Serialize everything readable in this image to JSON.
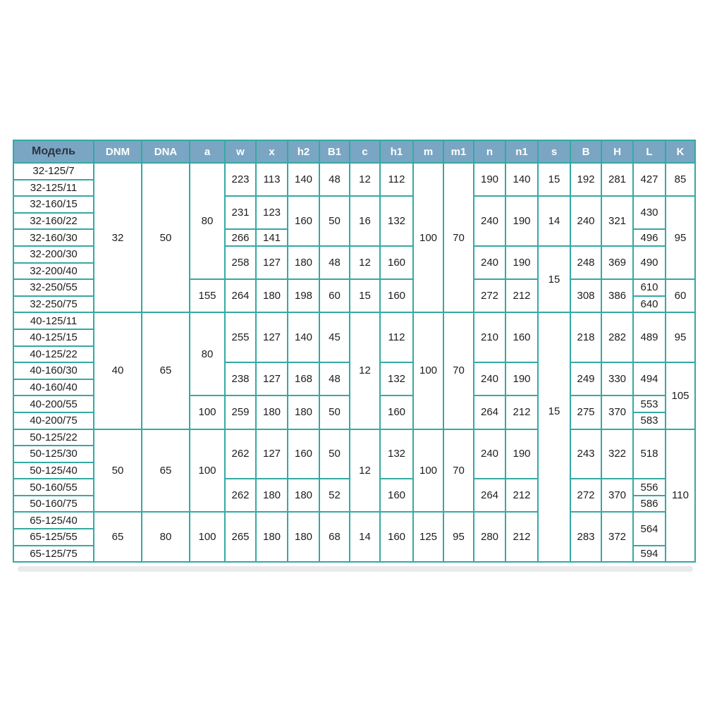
{
  "colors": {
    "border": "#35a9a4",
    "header_bg": "#7aa6c3",
    "header_text": "#ffffff",
    "model_header_text": "#2a3440",
    "cell_text": "#1d1d1f"
  },
  "table": {
    "columns": [
      {
        "key": "model",
        "label": "Модель"
      },
      {
        "key": "dnm",
        "label": "DNM"
      },
      {
        "key": "dna",
        "label": "DNA"
      },
      {
        "key": "a",
        "label": "a"
      },
      {
        "key": "w",
        "label": "w"
      },
      {
        "key": "x",
        "label": "x"
      },
      {
        "key": "h2",
        "label": "h2"
      },
      {
        "key": "b1",
        "label": "B1"
      },
      {
        "key": "c",
        "label": "c"
      },
      {
        "key": "h1",
        "label": "h1"
      },
      {
        "key": "m",
        "label": "m"
      },
      {
        "key": "m1",
        "label": "m1"
      },
      {
        "key": "n",
        "label": "n"
      },
      {
        "key": "n1",
        "label": "n1"
      },
      {
        "key": "s",
        "label": "s"
      },
      {
        "key": "b",
        "label": "B"
      },
      {
        "key": "h",
        "label": "H"
      },
      {
        "key": "l",
        "label": "L"
      },
      {
        "key": "k",
        "label": "K"
      }
    ],
    "rows": [
      {
        "cells": [
          {
            "c": "model",
            "v": "32-125/7"
          },
          {
            "c": "dnm",
            "v": "32",
            "rs": 9
          },
          {
            "c": "dna",
            "v": "50",
            "rs": 9
          },
          {
            "c": "a",
            "v": "80",
            "rs": 7
          },
          {
            "c": "w",
            "v": "223",
            "rs": 2
          },
          {
            "c": "x",
            "v": "113",
            "rs": 2
          },
          {
            "c": "h2",
            "v": "140",
            "rs": 2
          },
          {
            "c": "b1",
            "v": "48",
            "rs": 2
          },
          {
            "c": "c",
            "v": "12",
            "rs": 2
          },
          {
            "c": "h1",
            "v": "112",
            "rs": 2
          },
          {
            "c": "m",
            "v": "100",
            "rs": 9
          },
          {
            "c": "m1",
            "v": "70",
            "rs": 9
          },
          {
            "c": "n",
            "v": "190",
            "rs": 2
          },
          {
            "c": "n1",
            "v": "140",
            "rs": 2
          },
          {
            "c": "s",
            "v": "15",
            "rs": 2
          },
          {
            "c": "b",
            "v": "192",
            "rs": 2
          },
          {
            "c": "h",
            "v": "281",
            "rs": 2
          },
          {
            "c": "l",
            "v": "427",
            "rs": 2
          },
          {
            "c": "k",
            "v": "85",
            "rs": 2
          }
        ]
      },
      {
        "cells": [
          {
            "c": "model",
            "v": "32-125/11"
          }
        ]
      },
      {
        "cells": [
          {
            "c": "model",
            "v": "32-160/15"
          },
          {
            "c": "w",
            "v": "231",
            "rs": 2
          },
          {
            "c": "x",
            "v": "123",
            "rs": 2
          },
          {
            "c": "h2",
            "v": "160",
            "rs": 3
          },
          {
            "c": "b1",
            "v": "50",
            "rs": 3
          },
          {
            "c": "c",
            "v": "16",
            "rs": 3
          },
          {
            "c": "h1",
            "v": "132",
            "rs": 3
          },
          {
            "c": "n",
            "v": "240",
            "rs": 3
          },
          {
            "c": "n1",
            "v": "190",
            "rs": 3
          },
          {
            "c": "s",
            "v": "14",
            "rs": 3
          },
          {
            "c": "b",
            "v": "240",
            "rs": 3
          },
          {
            "c": "h",
            "v": "321",
            "rs": 3
          },
          {
            "c": "l",
            "v": "430",
            "rs": 2
          },
          {
            "c": "k",
            "v": "95",
            "rs": 5
          }
        ]
      },
      {
        "cells": [
          {
            "c": "model",
            "v": "32-160/22"
          }
        ]
      },
      {
        "cells": [
          {
            "c": "model",
            "v": "32-160/30"
          },
          {
            "c": "w",
            "v": "266"
          },
          {
            "c": "x",
            "v": "141"
          },
          {
            "c": "l",
            "v": "496"
          }
        ]
      },
      {
        "cells": [
          {
            "c": "model",
            "v": "32-200/30"
          },
          {
            "c": "w",
            "v": "258",
            "rs": 2
          },
          {
            "c": "x",
            "v": "127",
            "rs": 2
          },
          {
            "c": "h2",
            "v": "180",
            "rs": 2
          },
          {
            "c": "b1",
            "v": "48",
            "rs": 2
          },
          {
            "c": "c",
            "v": "12",
            "rs": 2
          },
          {
            "c": "h1",
            "v": "160",
            "rs": 2
          },
          {
            "c": "n",
            "v": "240",
            "rs": 2
          },
          {
            "c": "n1",
            "v": "190",
            "rs": 2
          },
          {
            "c": "s",
            "v": "15",
            "rs": 4
          },
          {
            "c": "b",
            "v": "248",
            "rs": 2
          },
          {
            "c": "h",
            "v": "369",
            "rs": 2
          },
          {
            "c": "l",
            "v": "490",
            "rs": 2
          }
        ]
      },
      {
        "cells": [
          {
            "c": "model",
            "v": "32-200/40"
          }
        ]
      },
      {
        "cells": [
          {
            "c": "model",
            "v": "32-250/55"
          },
          {
            "c": "a",
            "v": "155",
            "rs": 2
          },
          {
            "c": "w",
            "v": "264",
            "rs": 2
          },
          {
            "c": "x",
            "v": "180",
            "rs": 2
          },
          {
            "c": "h2",
            "v": "198",
            "rs": 2
          },
          {
            "c": "b1",
            "v": "60",
            "rs": 2
          },
          {
            "c": "c",
            "v": "15",
            "rs": 2
          },
          {
            "c": "h1",
            "v": "160",
            "rs": 2
          },
          {
            "c": "n",
            "v": "272",
            "rs": 2
          },
          {
            "c": "n1",
            "v": "212",
            "rs": 2
          },
          {
            "c": "b",
            "v": "308",
            "rs": 2
          },
          {
            "c": "h",
            "v": "386",
            "rs": 2
          },
          {
            "c": "l",
            "v": "610"
          },
          {
            "c": "k",
            "v": "60",
            "rs": 2
          }
        ]
      },
      {
        "cells": [
          {
            "c": "model",
            "v": "32-250/75"
          },
          {
            "c": "l",
            "v": "640"
          }
        ]
      },
      {
        "cells": [
          {
            "c": "model",
            "v": "40-125/11"
          },
          {
            "c": "dnm",
            "v": "40",
            "rs": 7
          },
          {
            "c": "dna",
            "v": "65",
            "rs": 7
          },
          {
            "c": "a",
            "v": "80",
            "rs": 5
          },
          {
            "c": "w",
            "v": "255",
            "rs": 3
          },
          {
            "c": "x",
            "v": "127",
            "rs": 3
          },
          {
            "c": "h2",
            "v": "140",
            "rs": 3
          },
          {
            "c": "b1",
            "v": "45",
            "rs": 3
          },
          {
            "c": "c",
            "v": "12",
            "rs": 7
          },
          {
            "c": "h1",
            "v": "112",
            "rs": 3
          },
          {
            "c": "m",
            "v": "100",
            "rs": 7
          },
          {
            "c": "m1",
            "v": "70",
            "rs": 7
          },
          {
            "c": "n",
            "v": "210",
            "rs": 3
          },
          {
            "c": "n1",
            "v": "160",
            "rs": 3
          },
          {
            "c": "s",
            "v": "15",
            "rs": 15,
            "va": "upper"
          },
          {
            "c": "b",
            "v": "218",
            "rs": 3
          },
          {
            "c": "h",
            "v": "282",
            "rs": 3
          },
          {
            "c": "l",
            "v": "489",
            "rs": 3
          },
          {
            "c": "k",
            "v": "95",
            "rs": 3
          }
        ]
      },
      {
        "cells": [
          {
            "c": "model",
            "v": "40-125/15"
          }
        ]
      },
      {
        "cells": [
          {
            "c": "model",
            "v": "40-125/22"
          }
        ]
      },
      {
        "cells": [
          {
            "c": "model",
            "v": "40-160/30"
          },
          {
            "c": "w",
            "v": "238",
            "rs": 2
          },
          {
            "c": "x",
            "v": "127",
            "rs": 2
          },
          {
            "c": "h2",
            "v": "168",
            "rs": 2
          },
          {
            "c": "b1",
            "v": "48",
            "rs": 2
          },
          {
            "c": "h1",
            "v": "132",
            "rs": 2
          },
          {
            "c": "n",
            "v": "240",
            "rs": 2
          },
          {
            "c": "n1",
            "v": "190",
            "rs": 2
          },
          {
            "c": "b",
            "v": "249",
            "rs": 2
          },
          {
            "c": "h",
            "v": "330",
            "rs": 2
          },
          {
            "c": "l",
            "v": "494",
            "rs": 2
          },
          {
            "c": "k",
            "v": "105",
            "rs": 4
          }
        ]
      },
      {
        "cells": [
          {
            "c": "model",
            "v": "40-160/40"
          }
        ]
      },
      {
        "cells": [
          {
            "c": "model",
            "v": "40-200/55"
          },
          {
            "c": "a",
            "v": "100",
            "rs": 2
          },
          {
            "c": "w",
            "v": "259",
            "rs": 2
          },
          {
            "c": "x",
            "v": "180",
            "rs": 2
          },
          {
            "c": "h2",
            "v": "180",
            "rs": 2
          },
          {
            "c": "b1",
            "v": "50",
            "rs": 2
          },
          {
            "c": "h1",
            "v": "160",
            "rs": 2
          },
          {
            "c": "n",
            "v": "264",
            "rs": 2
          },
          {
            "c": "n1",
            "v": "212",
            "rs": 2
          },
          {
            "c": "b",
            "v": "275",
            "rs": 2
          },
          {
            "c": "h",
            "v": "370",
            "rs": 2
          },
          {
            "c": "l",
            "v": "553"
          }
        ]
      },
      {
        "cells": [
          {
            "c": "model",
            "v": "40-200/75"
          },
          {
            "c": "l",
            "v": "583"
          }
        ]
      },
      {
        "cells": [
          {
            "c": "model",
            "v": "50-125/22"
          },
          {
            "c": "dnm",
            "v": "50",
            "rs": 5
          },
          {
            "c": "dna",
            "v": "65",
            "rs": 5
          },
          {
            "c": "a",
            "v": "100",
            "rs": 5
          },
          {
            "c": "w",
            "v": "262",
            "rs": 3
          },
          {
            "c": "x",
            "v": "127",
            "rs": 3
          },
          {
            "c": "h2",
            "v": "160",
            "rs": 3
          },
          {
            "c": "b1",
            "v": "50",
            "rs": 3
          },
          {
            "c": "c",
            "v": "12",
            "rs": 5
          },
          {
            "c": "h1",
            "v": "132",
            "rs": 3
          },
          {
            "c": "m",
            "v": "100",
            "rs": 5
          },
          {
            "c": "m1",
            "v": "70",
            "rs": 5
          },
          {
            "c": "n",
            "v": "240",
            "rs": 3
          },
          {
            "c": "n1",
            "v": "190",
            "rs": 3
          },
          {
            "c": "b",
            "v": "243",
            "rs": 3
          },
          {
            "c": "h",
            "v": "322",
            "rs": 3
          },
          {
            "c": "l",
            "v": "518",
            "rs": 3
          },
          {
            "c": "k",
            "v": "110",
            "rs": 8
          }
        ]
      },
      {
        "cells": [
          {
            "c": "model",
            "v": "50-125/30"
          }
        ]
      },
      {
        "cells": [
          {
            "c": "model",
            "v": "50-125/40"
          }
        ]
      },
      {
        "cells": [
          {
            "c": "model",
            "v": "50-160/55"
          },
          {
            "c": "w",
            "v": "262",
            "rs": 2
          },
          {
            "c": "x",
            "v": "180",
            "rs": 2
          },
          {
            "c": "h2",
            "v": "180",
            "rs": 2
          },
          {
            "c": "b1",
            "v": "52",
            "rs": 2
          },
          {
            "c": "h1",
            "v": "160",
            "rs": 2
          },
          {
            "c": "n",
            "v": "264",
            "rs": 2
          },
          {
            "c": "n1",
            "v": "212",
            "rs": 2
          },
          {
            "c": "b",
            "v": "272",
            "rs": 2
          },
          {
            "c": "h",
            "v": "370",
            "rs": 2
          },
          {
            "c": "l",
            "v": "556"
          }
        ]
      },
      {
        "cells": [
          {
            "c": "model",
            "v": "50-160/75"
          },
          {
            "c": "l",
            "v": "586"
          }
        ]
      },
      {
        "cells": [
          {
            "c": "model",
            "v": "65-125/40"
          },
          {
            "c": "dnm",
            "v": "65",
            "rs": 3
          },
          {
            "c": "dna",
            "v": "80",
            "rs": 3
          },
          {
            "c": "a",
            "v": "100",
            "rs": 3
          },
          {
            "c": "w",
            "v": "265",
            "rs": 3
          },
          {
            "c": "x",
            "v": "180",
            "rs": 3
          },
          {
            "c": "h2",
            "v": "180",
            "rs": 3
          },
          {
            "c": "b1",
            "v": "68",
            "rs": 3
          },
          {
            "c": "c",
            "v": "14",
            "rs": 3
          },
          {
            "c": "h1",
            "v": "160",
            "rs": 3
          },
          {
            "c": "m",
            "v": "125",
            "rs": 3
          },
          {
            "c": "m1",
            "v": "95",
            "rs": 3
          },
          {
            "c": "n",
            "v": "280",
            "rs": 3
          },
          {
            "c": "n1",
            "v": "212",
            "rs": 3
          },
          {
            "c": "b",
            "v": "283",
            "rs": 3
          },
          {
            "c": "h",
            "v": "372",
            "rs": 3
          },
          {
            "c": "l",
            "v": "564",
            "rs": 2
          }
        ]
      },
      {
        "cells": [
          {
            "c": "model",
            "v": "65-125/55"
          }
        ]
      },
      {
        "cells": [
          {
            "c": "model",
            "v": "65-125/75"
          },
          {
            "c": "l",
            "v": "594"
          }
        ]
      }
    ]
  }
}
